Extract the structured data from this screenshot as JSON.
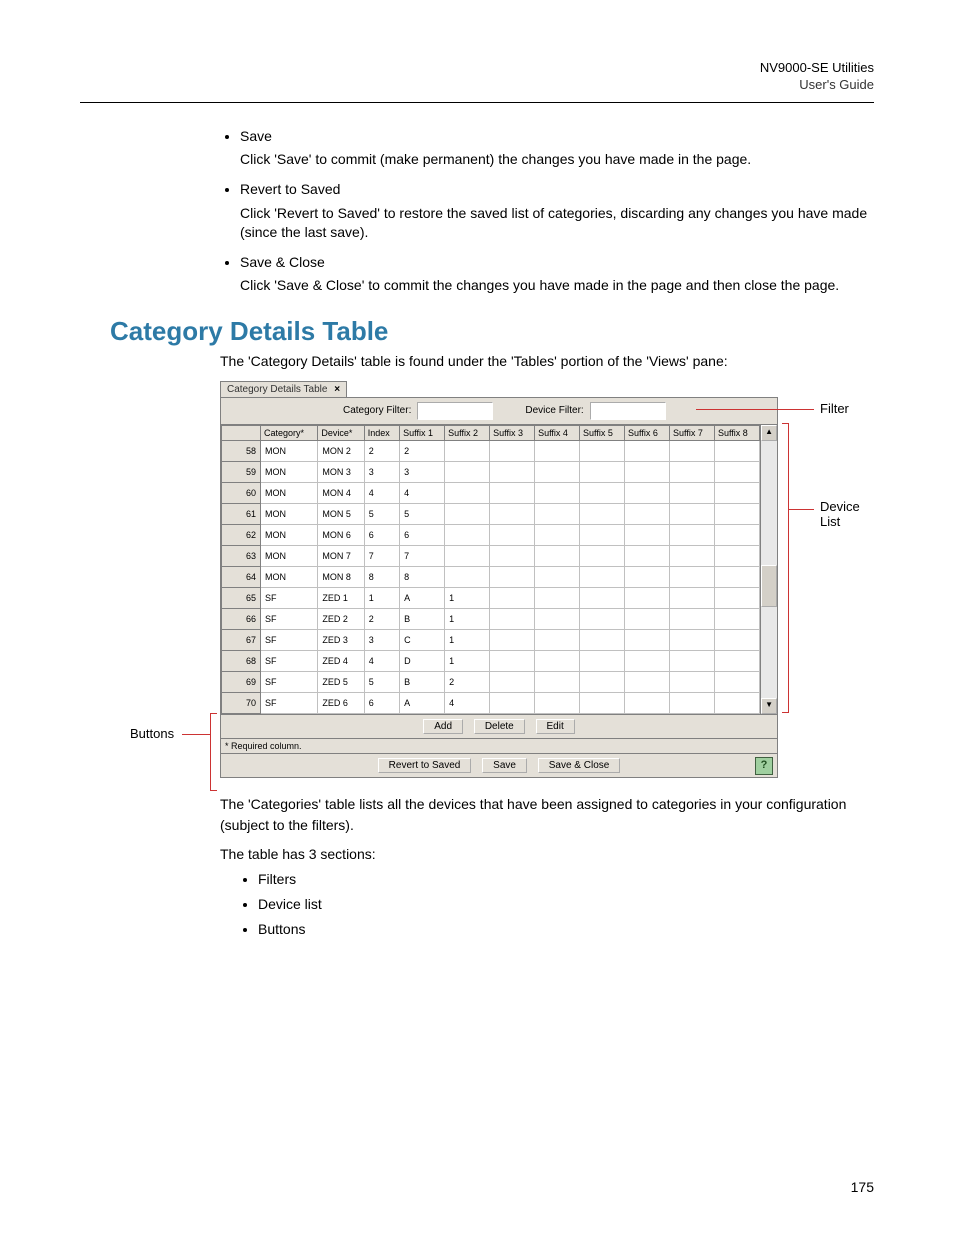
{
  "header": {
    "title": "NV9000-SE Utilities",
    "subtitle": "User's Guide"
  },
  "top_bullets": [
    {
      "term": "Save",
      "desc": "Click 'Save' to commit (make permanent) the changes you have made in the page."
    },
    {
      "term": "Revert to Saved",
      "desc": "Click 'Revert to Saved' to restore the saved list of categories, discarding any changes you have made (since the last save)."
    },
    {
      "term": "Save & Close",
      "desc": "Click 'Save & Close' to commit the changes you have made in the page and then close the page."
    }
  ],
  "section_heading": "Category Details Table",
  "intro": "The 'Category Details' table is found under the 'Tables' portion of the 'Views' pane:",
  "tab_label": "Category Details Table",
  "filters": {
    "category_label": "Category Filter:",
    "device_label": "Device Filter:"
  },
  "columns": [
    "Category*",
    "Device*",
    "Index",
    "Suffix 1",
    "Suffix 2",
    "Suffix 3",
    "Suffix 4",
    "Suffix 5",
    "Suffix 6",
    "Suffix 7",
    "Suffix 8"
  ],
  "rows": [
    {
      "n": "58",
      "cells": [
        "MON",
        "MON 2",
        "2",
        "2",
        "",
        "",
        "",
        "",
        "",
        "",
        ""
      ]
    },
    {
      "n": "59",
      "cells": [
        "MON",
        "MON 3",
        "3",
        "3",
        "",
        "",
        "",
        "",
        "",
        "",
        ""
      ]
    },
    {
      "n": "60",
      "cells": [
        "MON",
        "MON 4",
        "4",
        "4",
        "",
        "",
        "",
        "",
        "",
        "",
        ""
      ]
    },
    {
      "n": "61",
      "cells": [
        "MON",
        "MON 5",
        "5",
        "5",
        "",
        "",
        "",
        "",
        "",
        "",
        ""
      ]
    },
    {
      "n": "62",
      "cells": [
        "MON",
        "MON 6",
        "6",
        "6",
        "",
        "",
        "",
        "",
        "",
        "",
        ""
      ]
    },
    {
      "n": "63",
      "cells": [
        "MON",
        "MON 7",
        "7",
        "7",
        "",
        "",
        "",
        "",
        "",
        "",
        ""
      ]
    },
    {
      "n": "64",
      "cells": [
        "MON",
        "MON 8",
        "8",
        "8",
        "",
        "",
        "",
        "",
        "",
        "",
        ""
      ]
    },
    {
      "n": "65",
      "cells": [
        "SF",
        "ZED 1",
        "1",
        "A",
        "1",
        "",
        "",
        "",
        "",
        "",
        ""
      ]
    },
    {
      "n": "66",
      "cells": [
        "SF",
        "ZED 2",
        "2",
        "B",
        "1",
        "",
        "",
        "",
        "",
        "",
        ""
      ]
    },
    {
      "n": "67",
      "cells": [
        "SF",
        "ZED 3",
        "3",
        "C",
        "1",
        "",
        "",
        "",
        "",
        "",
        ""
      ]
    },
    {
      "n": "68",
      "cells": [
        "SF",
        "ZED 4",
        "4",
        "D",
        "1",
        "",
        "",
        "",
        "",
        "",
        ""
      ]
    },
    {
      "n": "69",
      "cells": [
        "SF",
        "ZED 5",
        "5",
        "B",
        "2",
        "",
        "",
        "",
        "",
        "",
        ""
      ]
    },
    {
      "n": "70",
      "cells": [
        "SF",
        "ZED 6",
        "6",
        "A",
        "4",
        "",
        "",
        "",
        "",
        "",
        ""
      ]
    }
  ],
  "mid_buttons": {
    "add": "Add",
    "delete": "Delete",
    "edit": "Edit"
  },
  "required": "* Required column.",
  "bottom_buttons": {
    "revert": "Revert to Saved",
    "save": "Save",
    "save_close": "Save & Close"
  },
  "callouts": {
    "filter": "Filter",
    "device_list_1": "Device",
    "device_list_2": "List",
    "buttons": "Buttons"
  },
  "after": {
    "p1": "The 'Categories' table lists all the devices that have been assigned to categories in your configuration (subject to the filters).",
    "p2": "The table has 3 sections:",
    "items": [
      "Filters",
      "Device list",
      "Buttons"
    ]
  },
  "page_number": "175",
  "colors": {
    "heading": "#2d7aa6",
    "callout_red": "#cc3333",
    "panel_bg": "#e4e0d8"
  }
}
